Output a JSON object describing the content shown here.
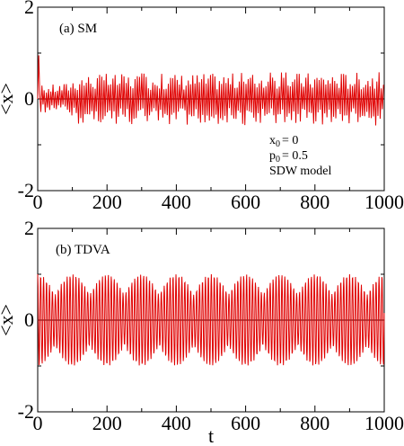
{
  "chart_data": [
    {
      "type": "line",
      "panel_label": "(a) SM",
      "xlabel": "",
      "ylabel": "<x>",
      "xlim": [
        0,
        1000
      ],
      "ylim": [
        -2,
        2
      ],
      "x_ticks": [
        "0",
        "200",
        "400",
        "600",
        "800",
        "1000"
      ],
      "y_ticks": [
        "-2",
        "0",
        "2"
      ],
      "grid": false,
      "zero_line": true,
      "annotations": [
        {
          "base": "x",
          "sub": "0",
          "rest": "= 0"
        },
        {
          "base": "p",
          "sub": "0",
          "rest": "= 0.5"
        },
        {
          "base": "SDW model",
          "sub": "",
          "rest": ""
        }
      ],
      "series": [
        {
          "color": "#e00000",
          "style": "irregular-oscillation",
          "x": [
            0,
            5,
            10,
            15,
            20,
            30,
            40,
            60,
            80,
            100,
            150,
            200,
            250,
            300,
            350,
            400,
            450,
            500,
            550,
            600,
            650,
            700,
            750,
            800,
            850,
            900,
            950,
            1000
          ],
          "y": [
            0.0,
            0.95,
            0.5,
            -0.35,
            0.3,
            -0.3,
            0.25,
            -0.3,
            0.35,
            -0.4,
            0.65,
            -0.55,
            0.7,
            -0.6,
            0.55,
            -0.6,
            0.6,
            -0.55,
            0.6,
            -0.55,
            0.6,
            -0.6,
            0.55,
            -0.6,
            0.6,
            -0.55,
            0.6,
            0.0
          ],
          "amplitude_envelope": [
            [
              0,
              0.3
            ],
            [
              80,
              0.35
            ],
            [
              120,
              0.55
            ],
            [
              1000,
              0.6
            ]
          ],
          "peak_start": 0.95
        }
      ]
    },
    {
      "type": "line",
      "panel_label": "(b) TDVA",
      "xlabel": "t",
      "ylabel": "<x>",
      "xlim": [
        0,
        1000
      ],
      "ylim": [
        -2,
        2
      ],
      "x_ticks": [
        "0",
        "200",
        "400",
        "600",
        "800",
        "1000"
      ],
      "y_ticks": [
        "-2",
        "0",
        "2"
      ],
      "grid": false,
      "zero_line": true,
      "annotations": [],
      "series": [
        {
          "color": "#e00000",
          "style": "regular-beating-oscillation",
          "x": [
            0,
            100,
            200,
            300,
            400,
            500,
            600,
            700,
            800,
            900,
            1000
          ],
          "y": [
            1.0,
            -1.0,
            1.0,
            -1.0,
            1.0,
            -1.0,
            1.0,
            -1.0,
            1.0,
            -1.0,
            1.0
          ],
          "amplitude": 1.0
        }
      ]
    }
  ]
}
